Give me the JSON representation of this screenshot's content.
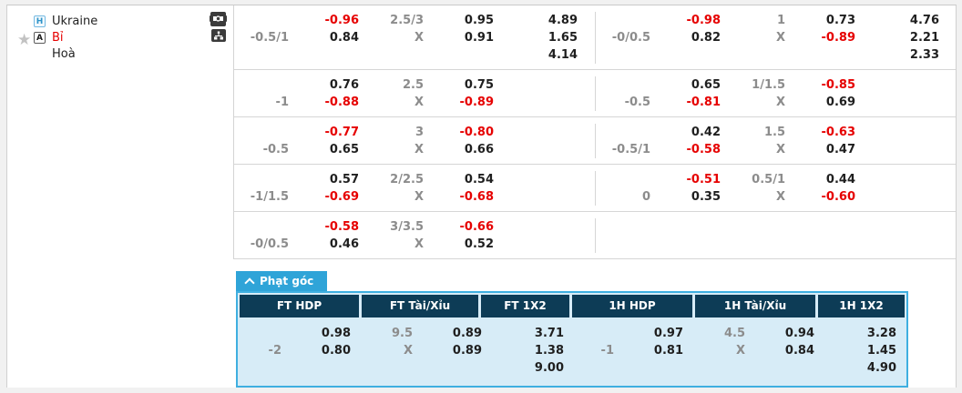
{
  "colors": {
    "accent_blue": "#2fa4d8",
    "header_navy": "#0d3c56",
    "panel_blue": "#d7ecf7",
    "odds_red": "#e60000",
    "muted_gray": "#8c8c8c"
  },
  "sidebar": {
    "home": {
      "badge": "H",
      "name": "Ukraine"
    },
    "away": {
      "badge": "A",
      "name": "Bỉ"
    },
    "draw": {
      "name": "Hoà"
    }
  },
  "odds_table": {
    "rows": [
      {
        "left": {
          "hdp": "-0.5/1",
          "col1": [
            {
              "v": "-0.96",
              "red": true
            },
            {
              "v": "0.84"
            }
          ],
          "ou": [
            "2.5/3",
            "X"
          ],
          "col2": [
            {
              "v": "0.95"
            },
            {
              "v": "0.91"
            }
          ],
          "x12": [
            "4.89",
            "1.65",
            "4.14"
          ]
        },
        "right": {
          "hdp": "-0/0.5",
          "col1": [
            {
              "v": "-0.98",
              "red": true
            },
            {
              "v": "0.82"
            }
          ],
          "ou": [
            "1",
            "X"
          ],
          "col2": [
            {
              "v": "0.73"
            },
            {
              "v": "-0.89",
              "red": true
            }
          ],
          "x12": [
            "4.76",
            "2.21",
            "2.33"
          ]
        }
      },
      {
        "left": {
          "hdp": "-1",
          "col1": [
            {
              "v": "0.76"
            },
            {
              "v": "-0.88",
              "red": true
            }
          ],
          "ou": [
            "2.5",
            "X"
          ],
          "col2": [
            {
              "v": "0.75"
            },
            {
              "v": "-0.89",
              "red": true
            }
          ],
          "x12": []
        },
        "right": {
          "hdp": "-0.5",
          "col1": [
            {
              "v": "0.65"
            },
            {
              "v": "-0.81",
              "red": true
            }
          ],
          "ou": [
            "1/1.5",
            "X"
          ],
          "col2": [
            {
              "v": "-0.85",
              "red": true
            },
            {
              "v": "0.69"
            }
          ],
          "x12": []
        }
      },
      {
        "left": {
          "hdp": "-0.5",
          "col1": [
            {
              "v": "-0.77",
              "red": true
            },
            {
              "v": "0.65"
            }
          ],
          "ou": [
            "3",
            "X"
          ],
          "col2": [
            {
              "v": "-0.80",
              "red": true
            },
            {
              "v": "0.66"
            }
          ],
          "x12": []
        },
        "right": {
          "hdp": "-0.5/1",
          "col1": [
            {
              "v": "0.42"
            },
            {
              "v": "-0.58",
              "red": true
            }
          ],
          "ou": [
            "1.5",
            "X"
          ],
          "col2": [
            {
              "v": "-0.63",
              "red": true
            },
            {
              "v": "0.47"
            }
          ],
          "x12": []
        }
      },
      {
        "left": {
          "hdp": "-1/1.5",
          "col1": [
            {
              "v": "0.57"
            },
            {
              "v": "-0.69",
              "red": true
            }
          ],
          "ou": [
            "2/2.5",
            "X"
          ],
          "col2": [
            {
              "v": "0.54"
            },
            {
              "v": "-0.68",
              "red": true
            }
          ],
          "x12": []
        },
        "right": {
          "hdp": "0",
          "col1": [
            {
              "v": "-0.51",
              "red": true
            },
            {
              "v": "0.35"
            }
          ],
          "ou": [
            "0.5/1",
            "X"
          ],
          "col2": [
            {
              "v": "0.44"
            },
            {
              "v": "-0.60",
              "red": true
            }
          ],
          "x12": []
        }
      },
      {
        "left": {
          "hdp": "-0/0.5",
          "col1": [
            {
              "v": "-0.58",
              "red": true
            },
            {
              "v": "0.46"
            }
          ],
          "ou": [
            "3/3.5",
            "X"
          ],
          "col2": [
            {
              "v": "-0.66",
              "red": true
            },
            {
              "v": "0.52"
            }
          ],
          "x12": []
        },
        "right": null
      }
    ]
  },
  "corner": {
    "tab_label": "Phạt góc",
    "headers": [
      "FT HDP",
      "FT Tài/Xỉu",
      "FT 1X2",
      "1H HDP",
      "1H Tài/Xỉu",
      "1H 1X2"
    ],
    "rows": [
      {
        "left": {
          "hdp": "-2",
          "col1": [
            {
              "v": "0.98"
            },
            {
              "v": "0.80"
            }
          ],
          "ou": [
            "9.5",
            "X"
          ],
          "col2": [
            {
              "v": "0.89"
            },
            {
              "v": "0.89"
            }
          ],
          "x12": [
            "3.71",
            "1.38",
            "9.00"
          ]
        },
        "right": {
          "hdp": "-1",
          "col1": [
            {
              "v": "0.97"
            },
            {
              "v": "0.81"
            }
          ],
          "ou": [
            "4.5",
            "X"
          ],
          "col2": [
            {
              "v": "0.94"
            },
            {
              "v": "0.84"
            }
          ],
          "x12": [
            "3.28",
            "1.45",
            "4.90"
          ]
        }
      }
    ]
  }
}
